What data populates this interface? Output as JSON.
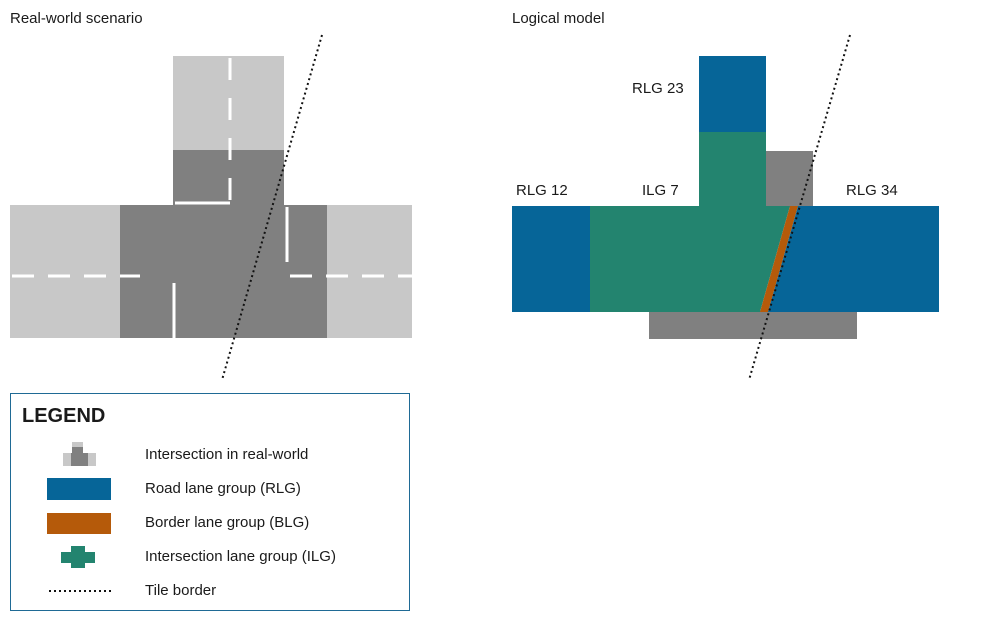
{
  "titles": {
    "real_world": "Real-world scenario",
    "logical": "Logical model"
  },
  "labels": {
    "rlg23": "RLG 23",
    "rlg12": "RLG 12",
    "ilg7": "ILG 7",
    "rlg34": "RLG 34"
  },
  "colors": {
    "rlg": "#066598",
    "blg": "#b55a0a",
    "ilg": "#23846f",
    "intersection": "#808080",
    "road_light": "#c8c8c8"
  },
  "legend": {
    "title": "LEGEND",
    "items": [
      {
        "icon": "intersection-icon",
        "label": "Intersection in real-world"
      },
      {
        "icon": "rlg-swatch",
        "label": "Road lane group (RLG)"
      },
      {
        "icon": "blg-swatch",
        "label": "Border lane group (BLG)"
      },
      {
        "icon": "ilg-cross-icon",
        "label": "Intersection lane group (ILG)"
      },
      {
        "icon": "dotted-line-icon",
        "label": "Tile border"
      }
    ]
  }
}
